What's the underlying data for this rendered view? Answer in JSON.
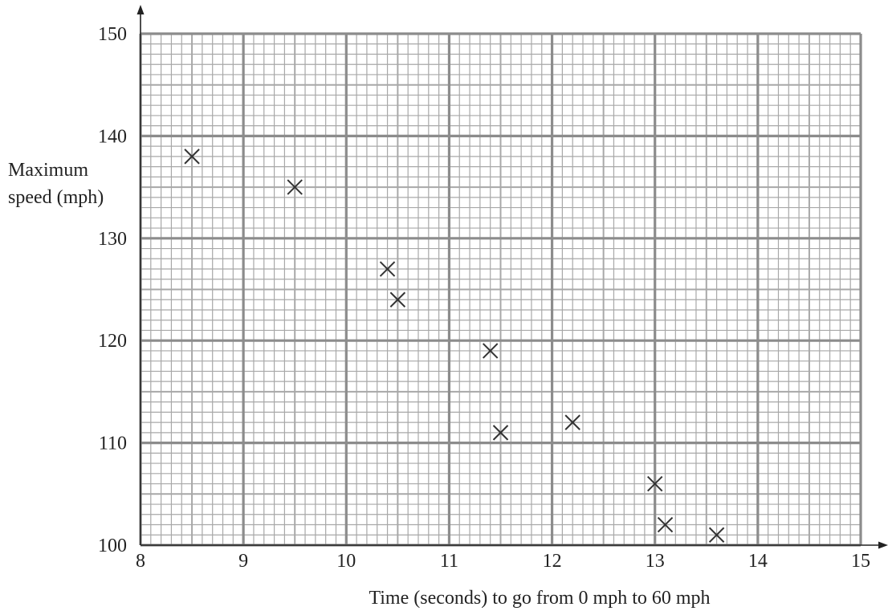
{
  "chart_data": {
    "type": "scatter",
    "xlabel": "Time (seconds) to go from 0 mph to 60 mph",
    "ylabel_lines": [
      "Maximum",
      "speed (mph)"
    ],
    "xlim": [
      8,
      15
    ],
    "ylim": [
      100,
      150
    ],
    "x_ticks": [
      8,
      9,
      10,
      11,
      12,
      13,
      14,
      15
    ],
    "y_ticks": [
      100,
      110,
      120,
      130,
      140,
      150
    ],
    "x_tick_labels": [
      "8",
      "9",
      "10",
      "11",
      "12",
      "13",
      "14",
      "15"
    ],
    "y_tick_labels": [
      "100",
      "110",
      "120",
      "130",
      "140",
      "150"
    ],
    "grid": true,
    "marker": "x",
    "colors": {
      "major_grid": "#8c8c8c",
      "minor_grid": "#a8a8a8",
      "axis": "#222222",
      "marker": "#333333"
    },
    "points": [
      {
        "x": 8.5,
        "y": 138
      },
      {
        "x": 9.5,
        "y": 135
      },
      {
        "x": 10.4,
        "y": 127
      },
      {
        "x": 10.5,
        "y": 124
      },
      {
        "x": 11.4,
        "y": 119
      },
      {
        "x": 11.5,
        "y": 111
      },
      {
        "x": 12.2,
        "y": 112
      },
      {
        "x": 13.0,
        "y": 106
      },
      {
        "x": 13.1,
        "y": 102
      },
      {
        "x": 13.6,
        "y": 101
      }
    ]
  }
}
